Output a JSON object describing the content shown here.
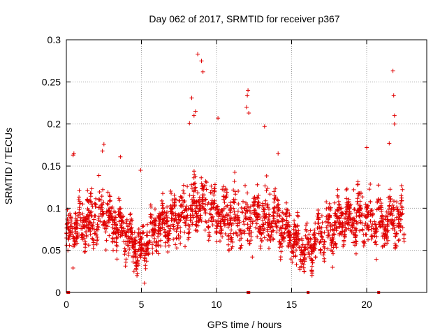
{
  "chart_data": {
    "type": "scatter",
    "title": "Day 062 of 2017, SRMTID for receiver p367",
    "xlabel": "GPS time / hours",
    "ylabel": "SRMTID / TECUs",
    "xlim": [
      0,
      24
    ],
    "ylim": [
      0,
      0.3
    ],
    "x_ticks": [
      0,
      5,
      10,
      15,
      20
    ],
    "x_tick_labels": [
      "0",
      "5",
      "10",
      "15",
      "20"
    ],
    "y_ticks": [
      0,
      0.05,
      0.1,
      0.15,
      0.2,
      0.25,
      0.3
    ],
    "y_tick_labels": [
      "0",
      "0.05",
      "0.1",
      "0.15",
      "0.2",
      "0.25",
      "0.3"
    ],
    "grid": true,
    "marker": "+",
    "color": "#e00000",
    "series": [
      {
        "name": "SRMTID",
        "envelope_hours": [
          0,
          0.5,
          1,
          1.5,
          2,
          2.5,
          3,
          3.5,
          4,
          4.5,
          5,
          5.5,
          6,
          6.5,
          7,
          7.5,
          8,
          8.5,
          9,
          9.5,
          10,
          10.5,
          11,
          11.5,
          12,
          12.5,
          13,
          13.5,
          14,
          14.5,
          15,
          15.5,
          16,
          16.5,
          17,
          17.5,
          18,
          18.5,
          19,
          19.5,
          20,
          20.5,
          21,
          21.5,
          22,
          22.5
        ],
        "envelope_mean": [
          0.065,
          0.075,
          0.08,
          0.085,
          0.09,
          0.095,
          0.085,
          0.08,
          0.07,
          0.055,
          0.05,
          0.065,
          0.075,
          0.08,
          0.085,
          0.09,
          0.09,
          0.1,
          0.105,
          0.1,
          0.095,
          0.09,
          0.09,
          0.085,
          0.09,
          0.085,
          0.09,
          0.09,
          0.085,
          0.075,
          0.065,
          0.055,
          0.05,
          0.06,
          0.07,
          0.075,
          0.08,
          0.085,
          0.085,
          0.09,
          0.09,
          0.085,
          0.08,
          0.085,
          0.09,
          0.085
        ],
        "envelope_spread": [
          0.025,
          0.03,
          0.035,
          0.04,
          0.04,
          0.04,
          0.035,
          0.035,
          0.03,
          0.025,
          0.025,
          0.03,
          0.035,
          0.035,
          0.035,
          0.04,
          0.045,
          0.05,
          0.05,
          0.045,
          0.04,
          0.04,
          0.04,
          0.04,
          0.045,
          0.04,
          0.04,
          0.04,
          0.035,
          0.035,
          0.03,
          0.03,
          0.025,
          0.03,
          0.03,
          0.035,
          0.035,
          0.035,
          0.04,
          0.04,
          0.04,
          0.04,
          0.035,
          0.04,
          0.04,
          0.035
        ],
        "outliers": [
          [
            8.75,
            0.283
          ],
          [
            9.0,
            0.275
          ],
          [
            9.1,
            0.262
          ],
          [
            8.35,
            0.231
          ],
          [
            8.5,
            0.21
          ],
          [
            8.6,
            0.215
          ],
          [
            8.2,
            0.201
          ],
          [
            10.1,
            0.207
          ],
          [
            12.1,
            0.24
          ],
          [
            12.05,
            0.234
          ],
          [
            12.0,
            0.22
          ],
          [
            12.15,
            0.213
          ],
          [
            13.2,
            0.197
          ],
          [
            21.75,
            0.263
          ],
          [
            21.8,
            0.234
          ],
          [
            21.85,
            0.21
          ],
          [
            21.85,
            0.2
          ],
          [
            21.5,
            0.177
          ],
          [
            20.0,
            0.172
          ],
          [
            4.95,
            0.145
          ],
          [
            5.2,
            0.011
          ],
          [
            4.7,
            0.02
          ],
          [
            4.5,
            0.025
          ],
          [
            0.1,
            0.05
          ],
          [
            0.45,
            0.163
          ],
          [
            0.5,
            0.165
          ],
          [
            2.5,
            0.176
          ],
          [
            2.4,
            0.168
          ],
          [
            3.6,
            0.161
          ],
          [
            14.1,
            0.165
          ]
        ],
        "zero_points_hours": [
          0.1,
          0.15,
          12.1,
          12.15,
          16.1,
          20.8
        ]
      }
    ]
  }
}
